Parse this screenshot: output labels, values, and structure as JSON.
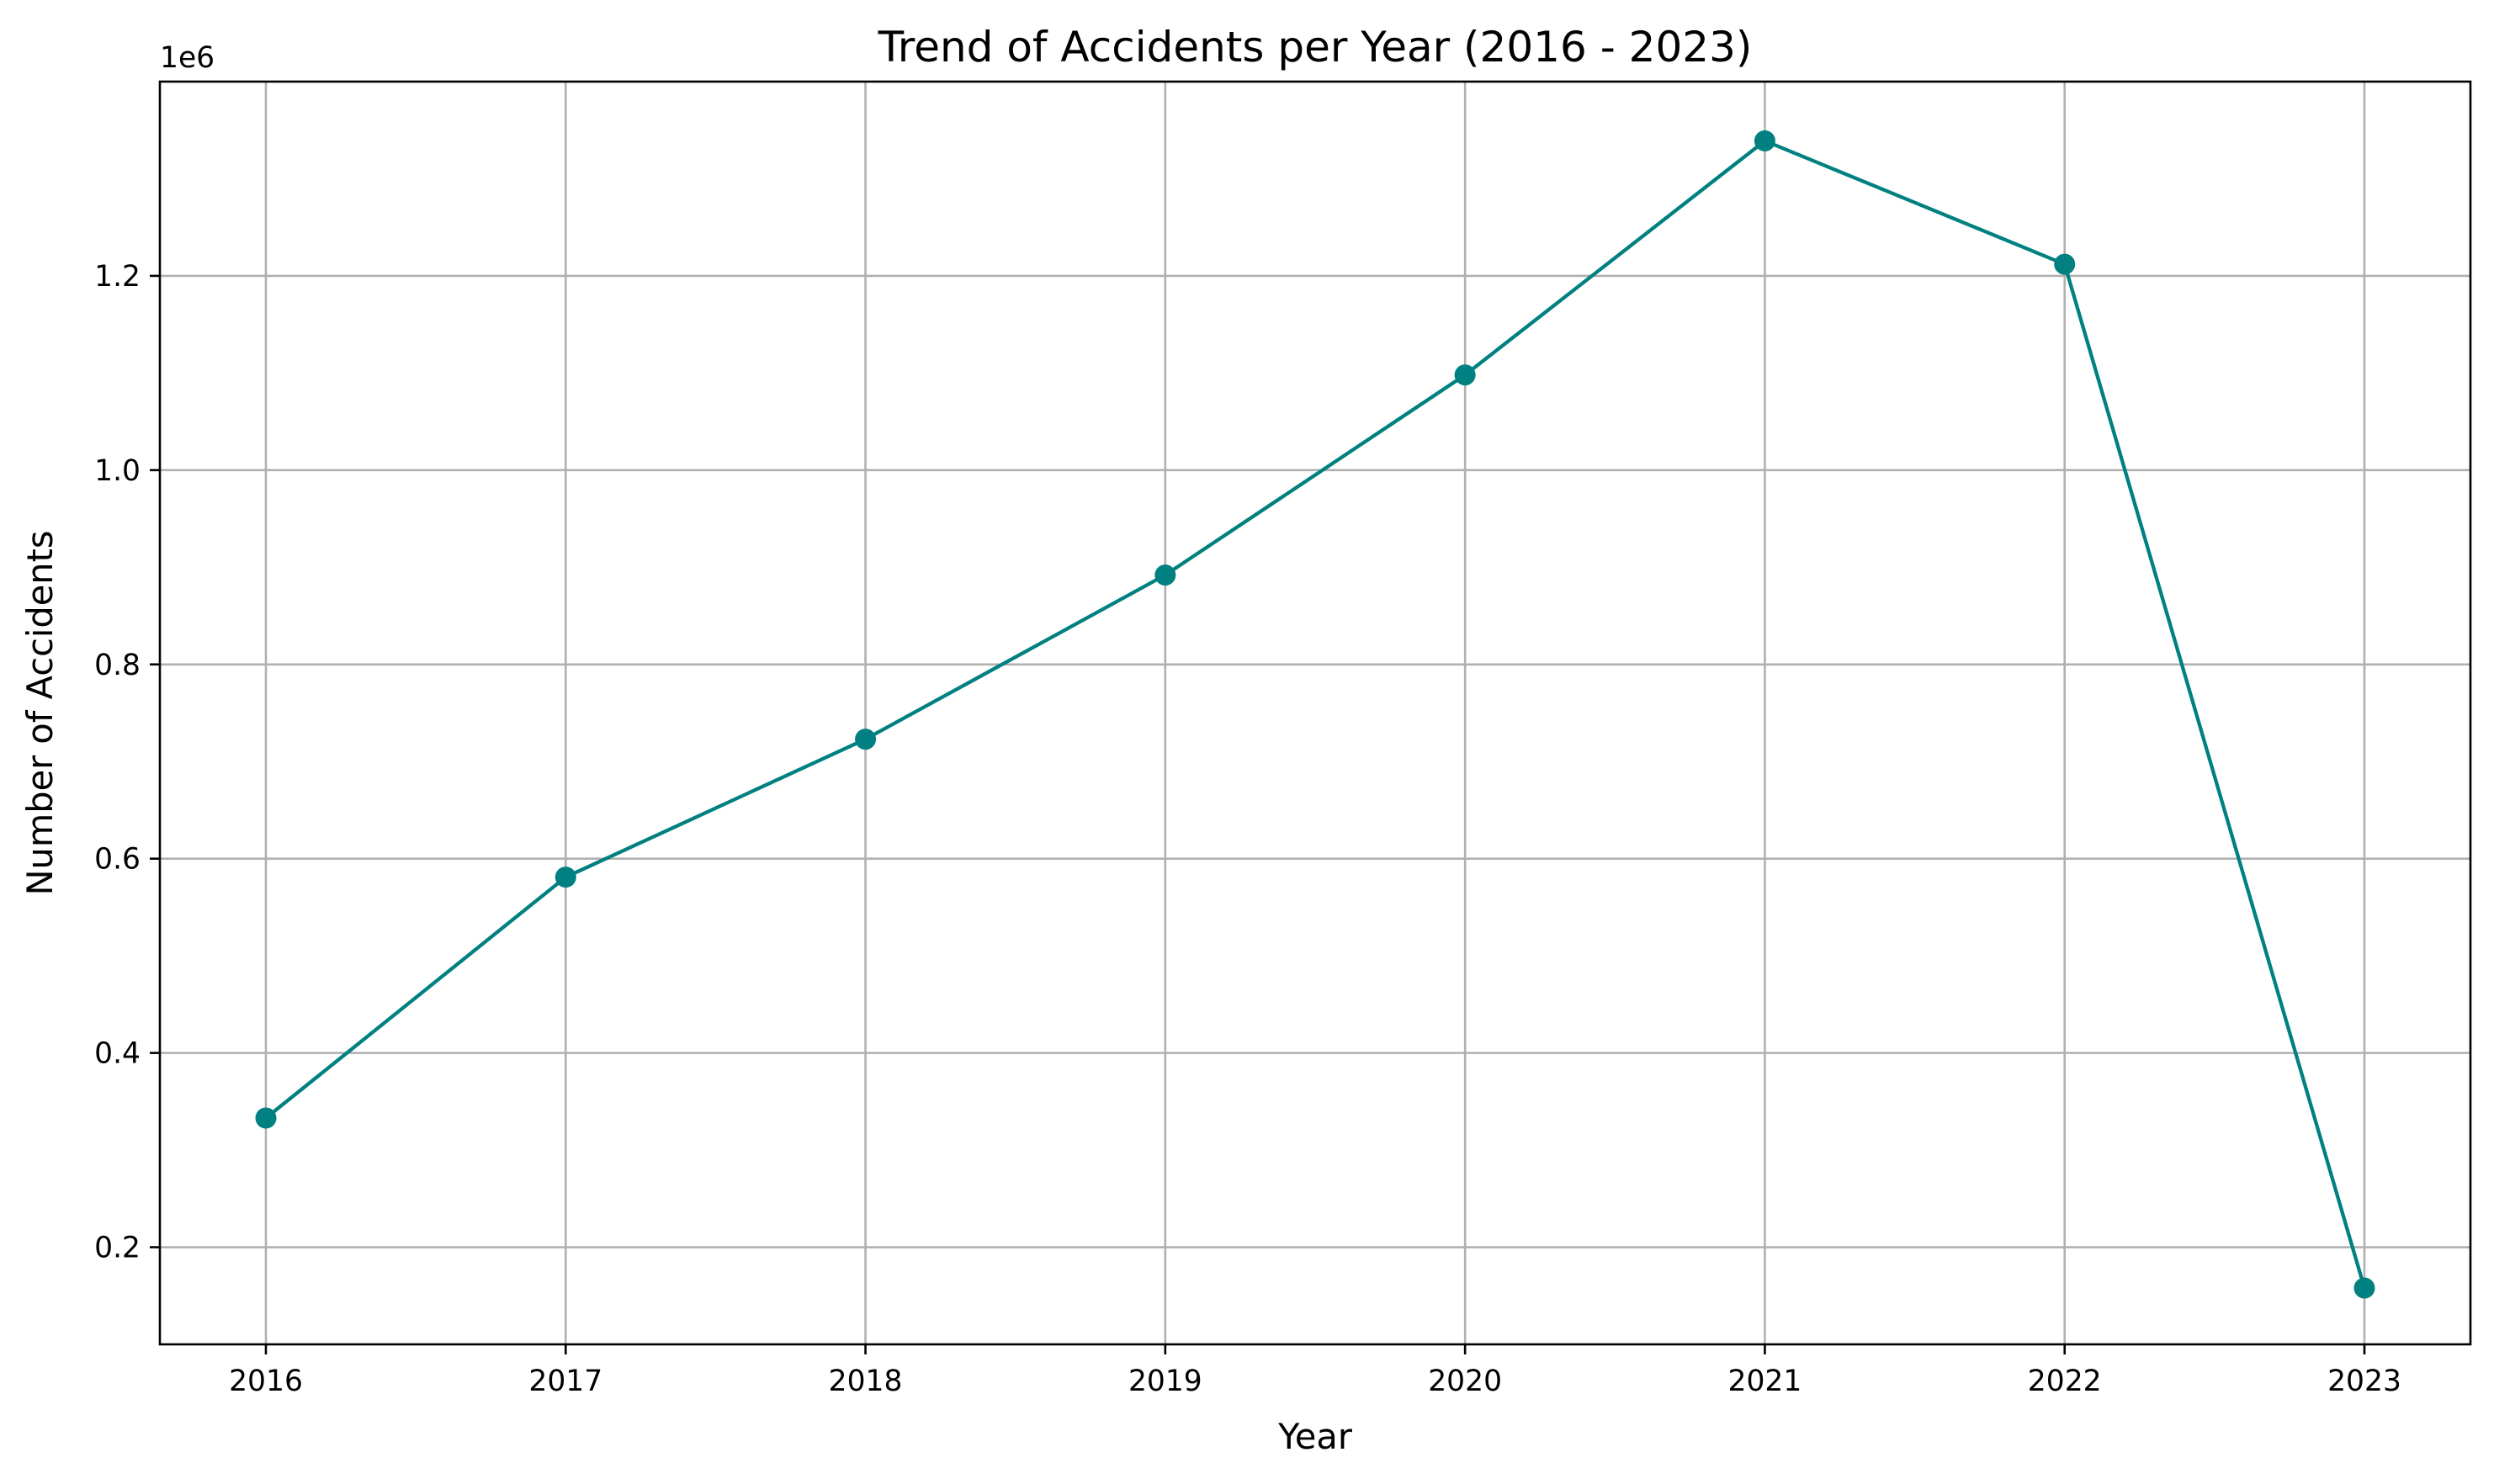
{
  "chart_data": {
    "type": "line",
    "title": "Trend of Accidents per Year (2016 - 2023)",
    "xlabel": "Year",
    "ylabel": "Number of Accidents",
    "y_offset_label": "1e6",
    "categories": [
      "2016",
      "2017",
      "2018",
      "2019",
      "2020",
      "2021",
      "2022",
      "2023"
    ],
    "series": [
      {
        "values": [
          333000,
          581000,
          723000,
          892000,
          1098000,
          1339000,
          1212000,
          158000
        ],
        "color": "#008080",
        "marker": "circle"
      }
    ],
    "yticks": [
      0.2,
      0.4,
      0.6,
      0.8,
      1.0,
      1.2
    ],
    "ytick_labels": [
      "0.2",
      "0.4",
      "0.6",
      "0.8",
      "1.0",
      "1.2"
    ],
    "ylim": [
      100000,
      1400000
    ],
    "grid": true,
    "legend": "none"
  }
}
